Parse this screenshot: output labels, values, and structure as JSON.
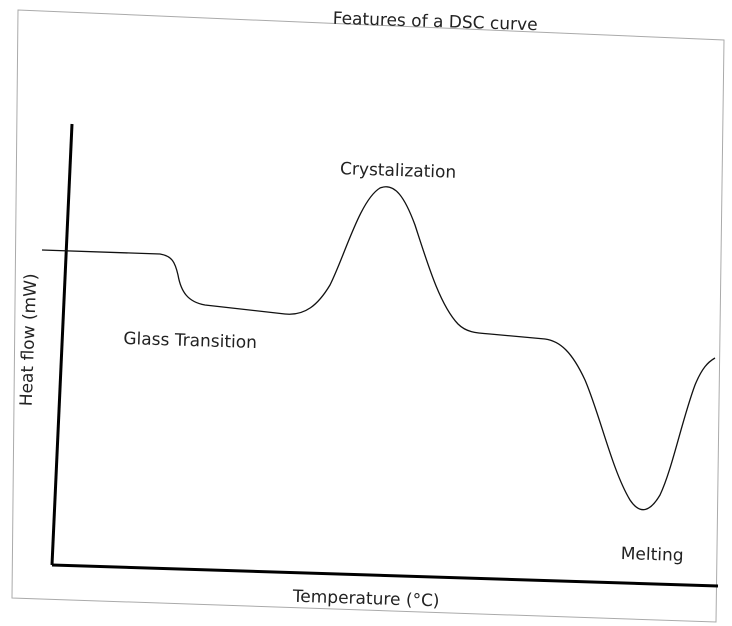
{
  "title": "Features of a DSC curve",
  "axes": {
    "y_label": "Heat flow (mW)",
    "x_label": "Temperature (°C)"
  },
  "annotations": [
    "Crystalization",
    "Glass Transition",
    "Melting"
  ]
}
